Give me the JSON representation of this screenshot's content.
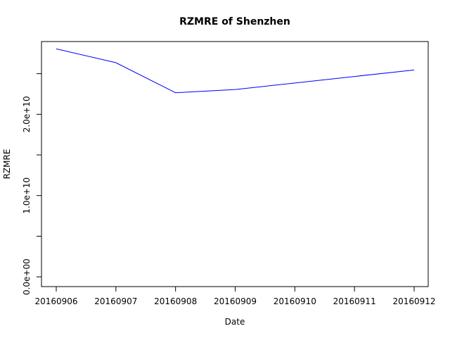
{
  "chart_data": {
    "type": "line",
    "title": "RZMRE of Shenzhen",
    "xlabel": "Date",
    "ylabel": "RZMRE",
    "x": [
      "20160906",
      "20160907",
      "20160908",
      "20160909",
      "20160910",
      "20160911",
      "20160912"
    ],
    "series": [
      {
        "values": [
          28050000000,
          26350000000,
          22650000000,
          23050000000,
          23850000000,
          24650000000,
          25450000000
        ],
        "color": "#0000ff"
      }
    ],
    "ylim": [
      -1200000000,
      28950000000
    ],
    "y_ticks": [
      0,
      5000000000,
      10000000000,
      15000000000,
      20000000000,
      25000000000
    ],
    "y_tick_labels": [
      "0.0e+00",
      "",
      "1.0e+10",
      "",
      "2.0e+10",
      ""
    ],
    "grid": false,
    "legend": "none"
  }
}
